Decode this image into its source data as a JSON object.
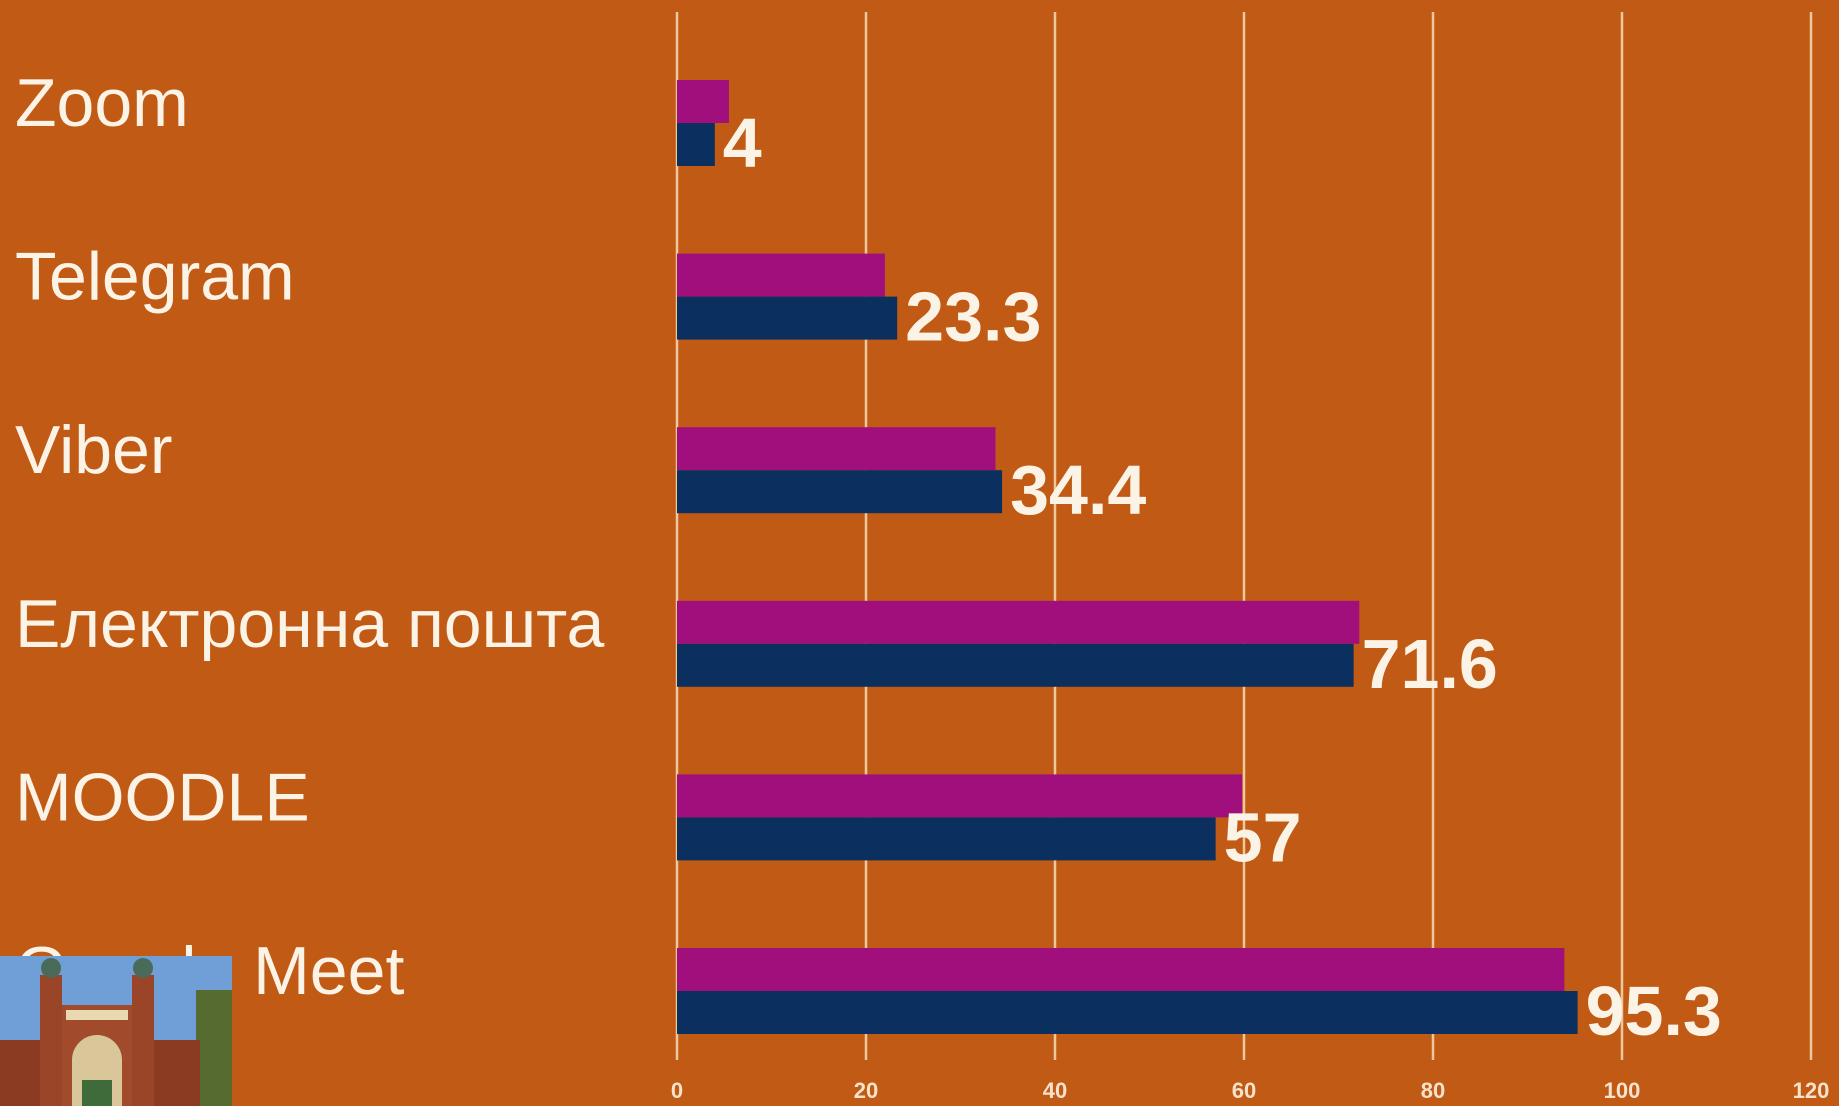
{
  "chart_data": {
    "type": "hbar",
    "categories": [
      "Zoom",
      "Telegram",
      "Viber",
      "Електронна пошта",
      "MOODLE",
      "Google Meet"
    ],
    "series": [
      {
        "color": "#a10f7c",
        "values": [
          5.5,
          22,
          33.7,
          72.2,
          59.8,
          93.9
        ]
      },
      {
        "color": "#0b2f5f",
        "values": [
          4,
          23.3,
          34.4,
          71.6,
          57,
          95.3
        ],
        "labeled": true
      }
    ],
    "xlim": [
      0,
      120
    ],
    "xticks": [
      0,
      20,
      40,
      60,
      80,
      100,
      120
    ],
    "grid": true
  }
}
